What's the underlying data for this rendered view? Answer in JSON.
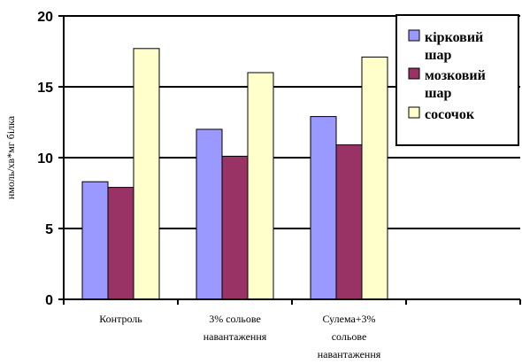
{
  "chart_data": {
    "type": "bar",
    "ylabel": "нмоль/хв*мг білка",
    "xlabel": "",
    "ylim": [
      0,
      20
    ],
    "yticks": [
      0,
      5,
      10,
      15,
      20
    ],
    "grid": true,
    "legend_position": "top-right",
    "categories": [
      [
        "Контроль"
      ],
      [
        "3% сольове",
        "навантаження"
      ],
      [
        "Сулема+3%",
        "сольове",
        "навантаження"
      ]
    ],
    "series": [
      {
        "name": "кірковий шар",
        "color": "#9999ff",
        "values": [
          8.3,
          12.0,
          12.9
        ]
      },
      {
        "name": "мозковий шар",
        "color": "#993366",
        "values": [
          7.9,
          10.1,
          10.9
        ]
      },
      {
        "name": "сосочок",
        "color": "#ffffcc",
        "values": [
          17.7,
          16.0,
          17.1
        ]
      }
    ],
    "legend_lines": [
      [
        "кірковий",
        "шар"
      ],
      [
        "мозковий",
        "шар"
      ],
      [
        "сосочок"
      ]
    ]
  }
}
